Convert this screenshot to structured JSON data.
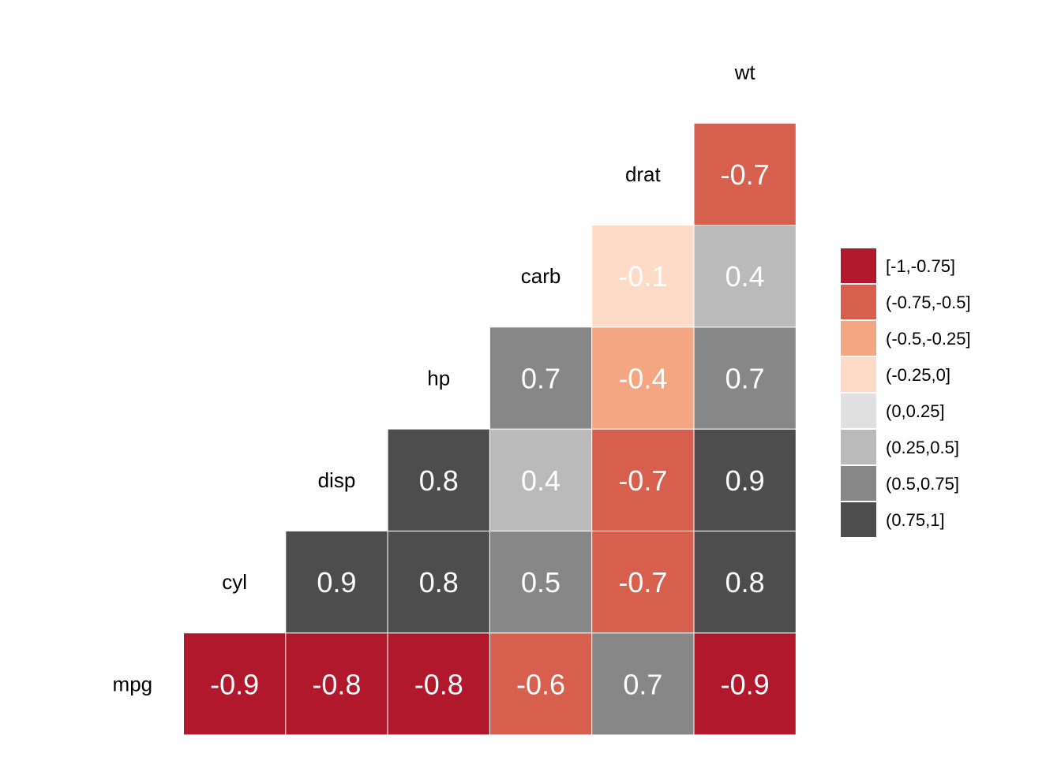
{
  "chart_data": {
    "type": "heatmap",
    "variables": [
      "mpg",
      "cyl",
      "disp",
      "hp",
      "carb",
      "drat",
      "wt"
    ],
    "cells": [
      {
        "row": "mpg",
        "col": "cyl",
        "value": -0.9,
        "label": "-0.9",
        "bin": 0
      },
      {
        "row": "mpg",
        "col": "disp",
        "value": -0.8,
        "label": "-0.8",
        "bin": 0
      },
      {
        "row": "mpg",
        "col": "hp",
        "value": -0.8,
        "label": "-0.8",
        "bin": 0
      },
      {
        "row": "mpg",
        "col": "carb",
        "value": -0.6,
        "label": "-0.6",
        "bin": 1
      },
      {
        "row": "mpg",
        "col": "drat",
        "value": 0.7,
        "label": "0.7",
        "bin": 6
      },
      {
        "row": "mpg",
        "col": "wt",
        "value": -0.9,
        "label": "-0.9",
        "bin": 0
      },
      {
        "row": "cyl",
        "col": "disp",
        "value": 0.9,
        "label": "0.9",
        "bin": 7
      },
      {
        "row": "cyl",
        "col": "hp",
        "value": 0.8,
        "label": "0.8",
        "bin": 7
      },
      {
        "row": "cyl",
        "col": "carb",
        "value": 0.5,
        "label": "0.5",
        "bin": 6
      },
      {
        "row": "cyl",
        "col": "drat",
        "value": -0.7,
        "label": "-0.7",
        "bin": 1
      },
      {
        "row": "cyl",
        "col": "wt",
        "value": 0.8,
        "label": "0.8",
        "bin": 7
      },
      {
        "row": "disp",
        "col": "hp",
        "value": 0.8,
        "label": "0.8",
        "bin": 7
      },
      {
        "row": "disp",
        "col": "carb",
        "value": 0.4,
        "label": "0.4",
        "bin": 5
      },
      {
        "row": "disp",
        "col": "drat",
        "value": -0.7,
        "label": "-0.7",
        "bin": 1
      },
      {
        "row": "disp",
        "col": "wt",
        "value": 0.9,
        "label": "0.9",
        "bin": 7
      },
      {
        "row": "hp",
        "col": "carb",
        "value": 0.7,
        "label": "0.7",
        "bin": 6
      },
      {
        "row": "hp",
        "col": "drat",
        "value": -0.4,
        "label": "-0.4",
        "bin": 2
      },
      {
        "row": "hp",
        "col": "wt",
        "value": 0.7,
        "label": "0.7",
        "bin": 6
      },
      {
        "row": "carb",
        "col": "drat",
        "value": -0.1,
        "label": "-0.1",
        "bin": 3
      },
      {
        "row": "carb",
        "col": "wt",
        "value": 0.4,
        "label": "0.4",
        "bin": 5
      },
      {
        "row": "drat",
        "col": "wt",
        "value": -0.7,
        "label": "-0.7",
        "bin": 1
      }
    ],
    "legend": {
      "position": "right",
      "bins": [
        {
          "label": "[-1,-0.75]",
          "color": "#B2182B"
        },
        {
          "label": "(-0.75,-0.5]",
          "color": "#D6604D"
        },
        {
          "label": "(-0.5,-0.25]",
          "color": "#F4A582"
        },
        {
          "label": "(-0.25,0]",
          "color": "#FDDBC7"
        },
        {
          "label": "(0,0.25]",
          "color": "#E0E0E0"
        },
        {
          "label": "(0.25,0.5]",
          "color": "#BABABA"
        },
        {
          "label": "(0.5,0.75]",
          "color": "#878787"
        },
        {
          "label": "(0.75,1]",
          "color": "#4D4D4D"
        }
      ]
    },
    "grid": false,
    "title": "",
    "xlabel": "",
    "ylabel": ""
  }
}
